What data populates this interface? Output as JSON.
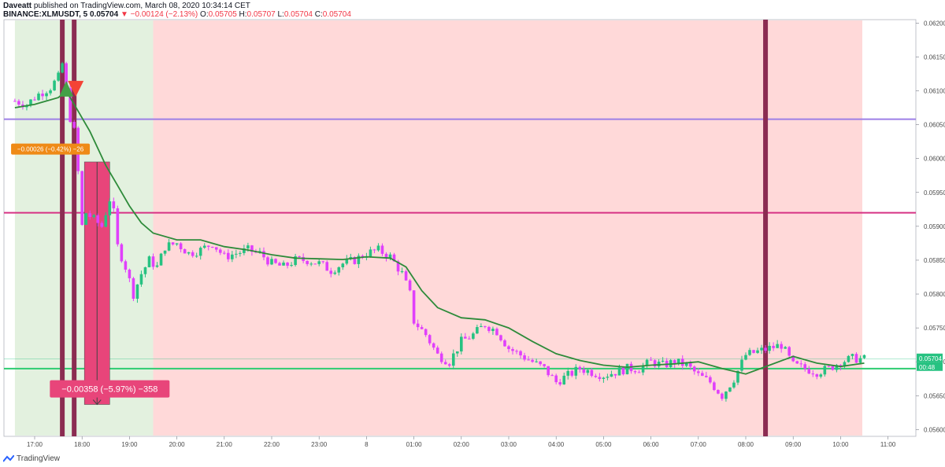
{
  "header": {
    "author": "Daveatt",
    "published_text": "published on TradingView.com, March 08, 2020 10:34:14 CET",
    "symbol": "BINANCE:XLMUSDT, 5",
    "last": "0.05704",
    "change": "−0.00124 (−2.13%)",
    "o_label": "O:",
    "o_val": "0.05705",
    "h_label": "H:",
    "h_val": "0.05707",
    "l_label": "L:",
    "l_val": "0.05704",
    "c_label": "C:",
    "c_val": "0.05704"
  },
  "footer": {
    "brand": "TradingView"
  },
  "colors": {
    "up": "#26c281",
    "down": "#e040fb",
    "ma": "#2e8b3a",
    "bg_green": "#e3f1df",
    "bg_red": "#ffd9d9",
    "line_purple": "#9d7fe6",
    "line_magenta": "#d63384",
    "line_green": "#2ecc71",
    "bar_maroon": "#8b2c52",
    "trade_box": "#e8457a",
    "label_orange": "#ef8a17"
  },
  "chart_data": {
    "type": "candlestick",
    "ylim": [
      0.0559,
      0.06205
    ],
    "y_ticks": [
      "0.06200",
      "0.06150",
      "0.06100",
      "0.06050",
      "0.06000",
      "0.05950",
      "0.05900",
      "0.05850",
      "0.05800",
      "0.05750",
      "0.05700",
      "0.05650",
      "0.05600"
    ],
    "x_ticks": [
      "17:00",
      "18:00",
      "19:00",
      "20:00",
      "21:00",
      "22:00",
      "23:00",
      "8",
      "01:00",
      "02:00",
      "03:00",
      "04:00",
      "05:00",
      "06:00",
      "07:00",
      "08:00",
      "09:00",
      "10:00",
      "11:00"
    ],
    "last_price": "0.05704",
    "countdown": "00:48",
    "price_path": [
      [
        "16:35",
        0.06085
      ],
      [
        "16:50",
        0.0608
      ],
      [
        "17:05",
        0.06095
      ],
      [
        "17:20",
        0.06105
      ],
      [
        "17:30",
        0.0612
      ],
      [
        "17:35",
        0.0614
      ],
      [
        "17:40",
        0.061
      ],
      [
        "17:45",
        0.0606
      ],
      [
        "17:50",
        0.0604
      ],
      [
        "17:55",
        0.0598
      ],
      [
        "18:00",
        0.059
      ],
      [
        "18:05",
        0.0592
      ],
      [
        "18:15",
        0.0591
      ],
      [
        "18:25",
        0.059
      ],
      [
        "18:35",
        0.0594
      ],
      [
        "18:40",
        0.0592
      ],
      [
        "18:45",
        0.0587
      ],
      [
        "18:55",
        0.0584
      ],
      [
        "19:05",
        0.058
      ],
      [
        "19:15",
        0.0583
      ],
      [
        "19:25",
        0.0585
      ],
      [
        "19:35",
        0.0584
      ],
      [
        "19:45",
        0.0587
      ],
      [
        "20:00",
        0.05875
      ],
      [
        "20:15",
        0.0586
      ],
      [
        "20:30",
        0.05865
      ],
      [
        "20:45",
        0.05875
      ],
      [
        "21:00",
        0.05855
      ],
      [
        "21:15",
        0.0586
      ],
      [
        "21:30",
        0.05865
      ],
      [
        "21:45",
        0.0586
      ],
      [
        "22:00",
        0.05845
      ],
      [
        "22:15",
        0.0584
      ],
      [
        "22:30",
        0.0585
      ],
      [
        "22:45",
        0.0585
      ],
      [
        "23:00",
        0.05845
      ],
      [
        "23:15",
        0.05835
      ],
      [
        "23:30",
        0.05845
      ],
      [
        "23:45",
        0.0585
      ],
      [
        "00:00",
        0.0586
      ],
      [
        "00:15",
        0.05865
      ],
      [
        "00:30",
        0.05855
      ],
      [
        "00:45",
        0.0583
      ],
      [
        "00:55",
        0.058
      ],
      [
        "01:00",
        0.0576
      ],
      [
        "01:15",
        0.0574
      ],
      [
        "01:30",
        0.0571
      ],
      [
        "01:45",
        0.057
      ],
      [
        "02:00",
        0.0573
      ],
      [
        "02:15",
        0.0574
      ],
      [
        "02:30",
        0.05755
      ],
      [
        "02:45",
        0.05745
      ],
      [
        "03:00",
        0.0572
      ],
      [
        "03:15",
        0.0571
      ],
      [
        "03:30",
        0.057
      ],
      [
        "03:45",
        0.0569
      ],
      [
        "04:00",
        0.0567
      ],
      [
        "04:15",
        0.0568
      ],
      [
        "04:30",
        0.0569
      ],
      [
        "04:45",
        0.05685
      ],
      [
        "05:00",
        0.0568
      ],
      [
        "05:15",
        0.05685
      ],
      [
        "05:30",
        0.0569
      ],
      [
        "05:45",
        0.0569
      ],
      [
        "06:00",
        0.057
      ],
      [
        "06:15",
        0.05695
      ],
      [
        "06:30",
        0.057
      ],
      [
        "06:45",
        0.05695
      ],
      [
        "07:00",
        0.0568
      ],
      [
        "07:15",
        0.0567
      ],
      [
        "07:30",
        0.0565
      ],
      [
        "07:45",
        0.05675
      ],
      [
        "08:00",
        0.0571
      ],
      [
        "08:15",
        0.05715
      ],
      [
        "08:30",
        0.0572
      ],
      [
        "08:45",
        0.05725
      ],
      [
        "09:00",
        0.05695
      ],
      [
        "09:15",
        0.0569
      ],
      [
        "09:30",
        0.05685
      ],
      [
        "09:45",
        0.0569
      ],
      [
        "10:00",
        0.057
      ],
      [
        "10:15",
        0.05705
      ],
      [
        "10:30",
        0.05704
      ]
    ],
    "ma_path": [
      [
        "16:35",
        0.06075
      ],
      [
        "17:00",
        0.0608
      ],
      [
        "17:30",
        0.0609
      ],
      [
        "17:40",
        0.061
      ],
      [
        "17:55",
        0.0607
      ],
      [
        "18:10",
        0.0604
      ],
      [
        "18:30",
        0.0599
      ],
      [
        "18:45",
        0.0596
      ],
      [
        "19:00",
        0.0593
      ],
      [
        "19:15",
        0.05905
      ],
      [
        "19:30",
        0.0589
      ],
      [
        "20:00",
        0.0588
      ],
      [
        "20:30",
        0.0588
      ],
      [
        "21:00",
        0.0587
      ],
      [
        "21:30",
        0.05865
      ],
      [
        "22:00",
        0.05858
      ],
      [
        "22:30",
        0.05853
      ],
      [
        "23:00",
        0.05852
      ],
      [
        "23:30",
        0.05851
      ],
      [
        "00:00",
        0.05855
      ],
      [
        "00:30",
        0.05853
      ],
      [
        "00:50",
        0.0584
      ],
      [
        "01:10",
        0.05805
      ],
      [
        "01:30",
        0.0578
      ],
      [
        "02:00",
        0.05765
      ],
      [
        "02:30",
        0.05762
      ],
      [
        "03:00",
        0.0575
      ],
      [
        "03:30",
        0.0573
      ],
      [
        "04:00",
        0.05712
      ],
      [
        "04:30",
        0.05702
      ],
      [
        "05:00",
        0.05695
      ],
      [
        "05:30",
        0.05692
      ],
      [
        "06:00",
        0.05695
      ],
      [
        "06:30",
        0.05697
      ],
      [
        "07:00",
        0.057
      ],
      [
        "07:30",
        0.0569
      ],
      [
        "08:00",
        0.05682
      ],
      [
        "08:30",
        0.05695
      ],
      [
        "09:00",
        0.05708
      ],
      [
        "09:30",
        0.05698
      ],
      [
        "10:00",
        0.05693
      ],
      [
        "10:30",
        0.05698
      ]
    ],
    "background_zones": [
      {
        "from": "16:35",
        "to": "19:30",
        "color": "bg_green"
      },
      {
        "from": "19:30",
        "to": "10:30",
        "color": "bg_red"
      }
    ],
    "horizontal_lines": [
      {
        "price": 0.06058,
        "color": "line_purple"
      },
      {
        "price": 0.0592,
        "color": "line_magenta"
      },
      {
        "price": 0.0569,
        "color": "line_green"
      }
    ],
    "vertical_bars": [
      {
        "time": "17:35",
        "color": "bar_maroon"
      },
      {
        "time": "17:50",
        "color": "bar_maroon"
      },
      {
        "time": "08:25",
        "color": "bar_maroon"
      }
    ],
    "signals": [
      {
        "time": "17:40",
        "price": 0.06103,
        "kind": "buy-triangle"
      },
      {
        "time": "17:52",
        "price": 0.06103,
        "kind": "sell-triangle"
      }
    ],
    "annotations": [
      {
        "text": "−0.00026 (−0.42%) −26",
        "time": "17:20",
        "price": 0.06014,
        "style": "orange"
      },
      {
        "text": "−0.00358 (−5.97%) −358",
        "time": "18:35",
        "price": 0.0566,
        "style": "pink"
      }
    ],
    "trade_box": {
      "from": "18:03",
      "to": "18:35",
      "top": 0.05995,
      "bottom": 0.05637
    }
  }
}
